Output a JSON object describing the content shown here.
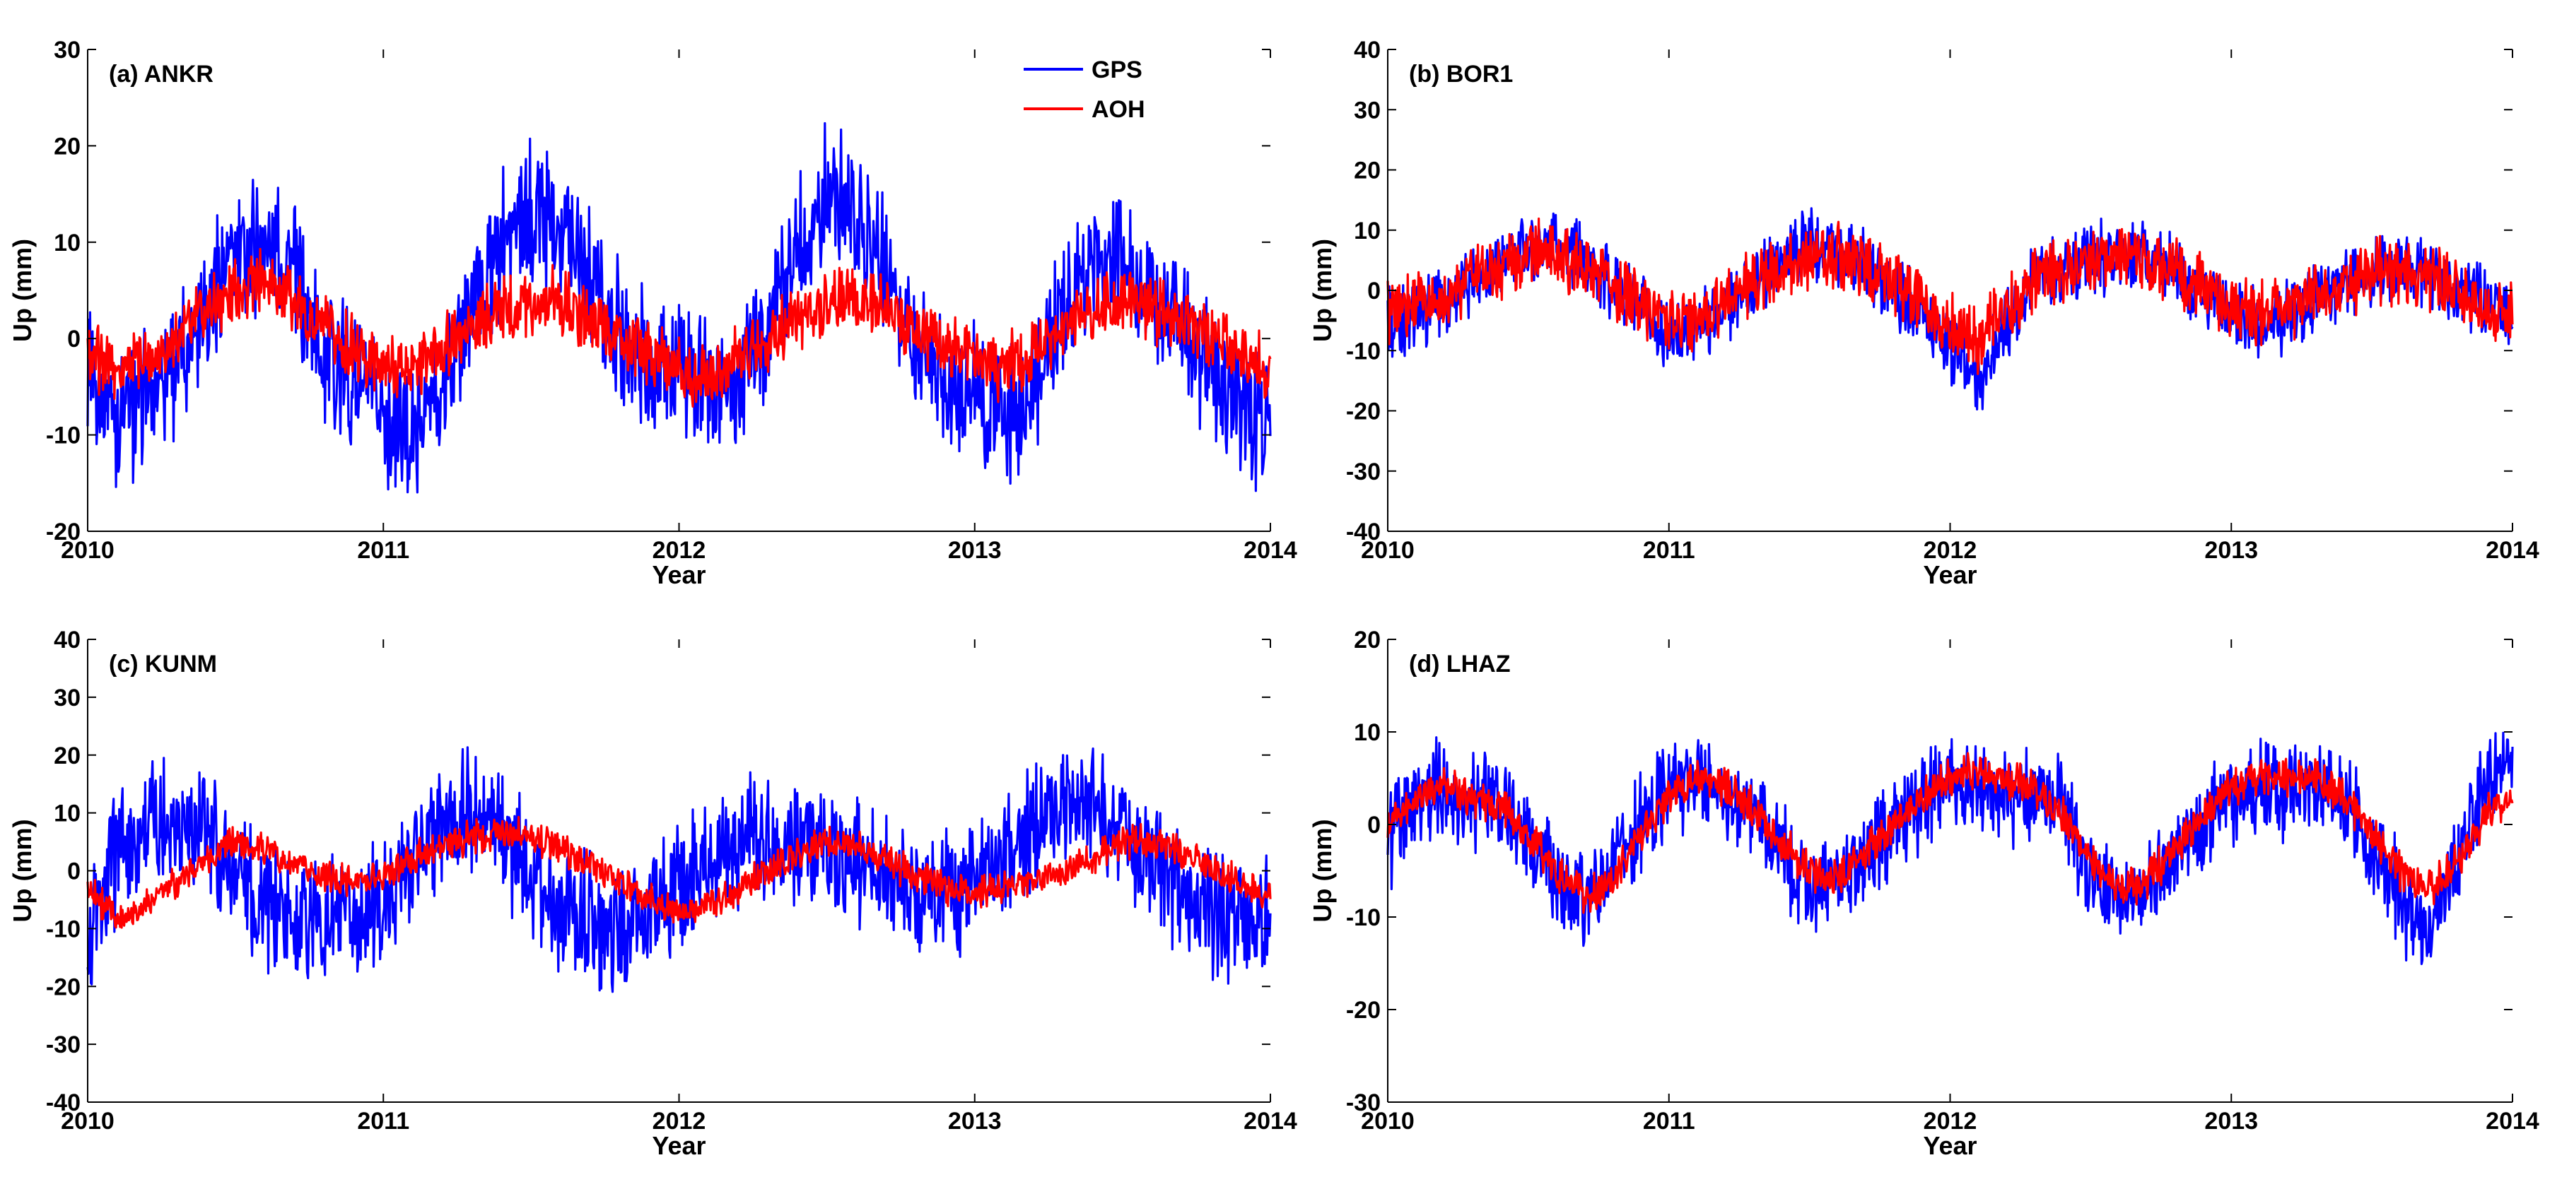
{
  "figure": {
    "legend_series": [
      "GPS",
      "AOH"
    ],
    "colors": {
      "GPS": "#0000ff",
      "AOH": "#ff0000",
      "axes": "#000000",
      "background": "#ffffff"
    }
  },
  "chart_data": [
    {
      "type": "line",
      "title": "(a) ANKR",
      "xlabel": "Year",
      "ylabel": "Up (mm)",
      "xlim": [
        2010,
        2014
      ],
      "ylim": [
        -20,
        30
      ],
      "xticks": [
        2010,
        2011,
        2012,
        2013,
        2014
      ],
      "yticks": [
        -20,
        -10,
        0,
        10,
        20,
        30
      ],
      "legend": {
        "entries": [
          "GPS",
          "AOH"
        ],
        "location": "top-right"
      },
      "series": [
        {
          "name": "GPS",
          "color": "#0000ff",
          "x": [
            2010.0,
            2010.1,
            2010.2,
            2010.3,
            2010.4,
            2010.5,
            2010.6,
            2010.7,
            2010.8,
            2010.9,
            2011.0,
            2011.1,
            2011.2,
            2011.3,
            2011.4,
            2011.5,
            2011.6,
            2011.7,
            2011.8,
            2011.9,
            2012.0,
            2012.1,
            2012.2,
            2012.3,
            2012.4,
            2012.5,
            2012.6,
            2012.7,
            2012.8,
            2012.9,
            2013.0,
            2013.1,
            2013.2,
            2013.3,
            2013.4,
            2013.5,
            2013.6,
            2013.7,
            2013.8,
            2013.9,
            2014.0
          ],
          "values": [
            -2,
            -8,
            -6,
            -3,
            4,
            9,
            10,
            7,
            -2,
            -4,
            -8,
            -10,
            -5,
            3,
            10,
            13,
            12,
            7,
            0,
            -3,
            -3,
            -6,
            -4,
            2,
            9,
            15,
            13,
            7,
            -1,
            -4,
            -6,
            -9,
            -5,
            3,
            7,
            8,
            5,
            1,
            -3,
            -7,
            -10
          ]
        },
        {
          "name": "AOH",
          "color": "#ff0000",
          "x": [
            2010.0,
            2010.1,
            2010.2,
            2010.3,
            2010.4,
            2010.5,
            2010.6,
            2010.7,
            2010.8,
            2010.9,
            2011.0,
            2011.1,
            2011.2,
            2011.3,
            2011.4,
            2011.5,
            2011.6,
            2011.7,
            2011.8,
            2011.9,
            2012.0,
            2012.1,
            2012.2,
            2012.3,
            2012.4,
            2012.5,
            2012.6,
            2012.7,
            2012.8,
            2012.9,
            2013.0,
            2013.1,
            2013.2,
            2013.3,
            2013.4,
            2013.5,
            2013.6,
            2013.7,
            2013.8,
            2013.9,
            2014.0
          ],
          "values": [
            -2,
            -3,
            -2,
            0,
            3,
            5,
            6,
            4,
            1,
            -1,
            -3,
            -3,
            -1,
            1,
            3,
            4,
            4,
            2,
            0,
            -2,
            -3,
            -4,
            -2,
            0,
            2,
            4,
            4,
            3,
            1,
            -1,
            -2,
            -3,
            -2,
            1,
            3,
            4,
            3,
            2,
            0,
            -1,
            -3
          ]
        }
      ]
    },
    {
      "type": "line",
      "title": "(b) BOR1",
      "xlabel": "Year",
      "ylabel": "Up (mm)",
      "xlim": [
        2010,
        2014
      ],
      "ylim": [
        -40,
        40
      ],
      "xticks": [
        2010,
        2011,
        2012,
        2013,
        2014
      ],
      "yticks": [
        -40,
        -30,
        -20,
        -10,
        0,
        10,
        20,
        30,
        40
      ],
      "series": [
        {
          "name": "GPS",
          "color": "#0000ff",
          "x": [
            2010.0,
            2010.1,
            2010.2,
            2010.3,
            2010.4,
            2010.5,
            2010.6,
            2010.7,
            2010.8,
            2010.9,
            2011.0,
            2011.1,
            2011.2,
            2011.3,
            2011.4,
            2011.5,
            2011.6,
            2011.7,
            2011.8,
            2011.9,
            2012.0,
            2012.1,
            2012.2,
            2012.3,
            2012.4,
            2012.5,
            2012.6,
            2012.7,
            2012.8,
            2012.9,
            2013.0,
            2013.1,
            2013.2,
            2013.3,
            2013.4,
            2013.5,
            2013.6,
            2013.7,
            2013.8,
            2013.9,
            2014.0
          ],
          "values": [
            -6,
            -4,
            -2,
            2,
            5,
            7,
            8,
            5,
            1,
            -3,
            -8,
            -6,
            -3,
            1,
            5,
            8,
            7,
            4,
            0,
            -4,
            -10,
            -15,
            -6,
            2,
            4,
            5,
            6,
            6,
            3,
            0,
            -4,
            -6,
            -4,
            -2,
            1,
            3,
            4,
            3,
            0,
            -2,
            -5
          ]
        },
        {
          "name": "AOH",
          "color": "#ff0000",
          "x": [
            2010.0,
            2010.1,
            2010.2,
            2010.3,
            2010.4,
            2010.5,
            2010.6,
            2010.7,
            2010.8,
            2010.9,
            2011.0,
            2011.1,
            2011.2,
            2011.3,
            2011.4,
            2011.5,
            2011.6,
            2011.7,
            2011.8,
            2011.9,
            2012.0,
            2012.1,
            2012.2,
            2012.3,
            2012.4,
            2012.5,
            2012.6,
            2012.7,
            2012.8,
            2012.9,
            2013.0,
            2013.1,
            2013.2,
            2013.3,
            2013.4,
            2013.5,
            2013.6,
            2013.7,
            2013.8,
            2013.9,
            2014.0
          ],
          "values": [
            -3,
            -2,
            -1,
            2,
            4,
            6,
            6,
            4,
            1,
            -2,
            -5,
            -5,
            -2,
            1,
            4,
            6,
            6,
            4,
            1,
            -2,
            -6,
            -8,
            -3,
            2,
            4,
            5,
            6,
            5,
            3,
            0,
            -3,
            -4,
            -3,
            -1,
            1,
            3,
            3,
            2,
            0,
            -2,
            -4
          ]
        }
      ]
    },
    {
      "type": "line",
      "title": "(c) KUNM",
      "xlabel": "Year",
      "ylabel": "Up (mm)",
      "xlim": [
        2010,
        2014
      ],
      "ylim": [
        -40,
        40
      ],
      "xticks": [
        2010,
        2011,
        2012,
        2013,
        2014
      ],
      "yticks": [
        -40,
        -30,
        -20,
        -10,
        0,
        10,
        20,
        30,
        40
      ],
      "series": [
        {
          "name": "GPS",
          "color": "#0000ff",
          "x": [
            2010.0,
            2010.1,
            2010.2,
            2010.3,
            2010.4,
            2010.5,
            2010.6,
            2010.7,
            2010.8,
            2010.9,
            2011.0,
            2011.1,
            2011.2,
            2011.3,
            2011.4,
            2011.5,
            2011.6,
            2011.7,
            2011.8,
            2011.9,
            2012.0,
            2012.1,
            2012.2,
            2012.3,
            2012.4,
            2012.5,
            2012.6,
            2012.7,
            2012.8,
            2012.9,
            2013.0,
            2013.1,
            2013.2,
            2013.3,
            2013.4,
            2013.5,
            2013.6,
            2013.7,
            2013.8,
            2013.9,
            2014.0
          ],
          "values": [
            -12,
            2,
            8,
            10,
            6,
            0,
            -6,
            -8,
            -9,
            -8,
            -6,
            2,
            8,
            10,
            6,
            0,
            -6,
            -9,
            -10,
            -8,
            -4,
            2,
            5,
            6,
            5,
            4,
            2,
            -1,
            -3,
            -4,
            -2,
            3,
            7,
            10,
            12,
            8,
            2,
            -3,
            -8,
            -9,
            -6
          ]
        },
        {
          "name": "AOH",
          "color": "#ff0000",
          "x": [
            2010.0,
            2010.1,
            2010.2,
            2010.3,
            2010.4,
            2010.5,
            2010.6,
            2010.7,
            2010.8,
            2010.9,
            2011.0,
            2011.1,
            2011.2,
            2011.3,
            2011.4,
            2011.5,
            2011.6,
            2011.7,
            2011.8,
            2011.9,
            2012.0,
            2012.1,
            2012.2,
            2012.3,
            2012.4,
            2012.5,
            2012.6,
            2012.7,
            2012.8,
            2012.9,
            2013.0,
            2013.1,
            2013.2,
            2013.3,
            2013.4,
            2013.5,
            2013.6,
            2013.7,
            2013.8,
            2013.9,
            2014.0
          ],
          "values": [
            -3,
            -8,
            -6,
            -2,
            2,
            5,
            4,
            1,
            -1,
            -2,
            -1,
            2,
            4,
            6,
            7,
            6,
            4,
            1,
            -2,
            -5,
            -7,
            -6,
            -3,
            0,
            3,
            5,
            4,
            2,
            -1,
            -3,
            -4,
            -3,
            -2,
            0,
            2,
            5,
            5,
            3,
            1,
            -2,
            -5
          ]
        }
      ]
    },
    {
      "type": "line",
      "title": "(d) LHAZ",
      "xlabel": "Year",
      "ylabel": "Up (mm)",
      "xlim": [
        2010,
        2014
      ],
      "ylim": [
        -30,
        20
      ],
      "xticks": [
        2010,
        2011,
        2012,
        2013,
        2014
      ],
      "yticks": [
        -30,
        -20,
        -10,
        0,
        10,
        20
      ],
      "series": [
        {
          "name": "GPS",
          "color": "#0000ff",
          "x": [
            2010.0,
            2010.1,
            2010.2,
            2010.3,
            2010.4,
            2010.5,
            2010.6,
            2010.7,
            2010.8,
            2010.9,
            2011.0,
            2011.1,
            2011.2,
            2011.3,
            2011.4,
            2011.5,
            2011.6,
            2011.7,
            2011.8,
            2011.9,
            2012.0,
            2012.1,
            2012.2,
            2012.3,
            2012.4,
            2012.5,
            2012.6,
            2012.7,
            2012.8,
            2012.9,
            2013.0,
            2013.1,
            2013.2,
            2013.3,
            2013.4,
            2013.5,
            2013.6,
            2013.7,
            2013.8,
            2013.9,
            2014.0
          ],
          "values": [
            -2,
            3,
            4,
            3,
            2,
            -1,
            -6,
            -8,
            -5,
            0,
            4,
            5,
            3,
            1,
            -3,
            -6,
            -6,
            -3,
            0,
            2,
            5,
            4,
            3,
            4,
            2,
            -5,
            -8,
            -7,
            -3,
            0,
            3,
            4,
            3,
            4,
            3,
            -2,
            -8,
            -12,
            -5,
            5,
            8
          ]
        },
        {
          "name": "AOH",
          "color": "#ff0000",
          "x": [
            2010.0,
            2010.1,
            2010.2,
            2010.3,
            2010.4,
            2010.5,
            2010.6,
            2010.7,
            2010.8,
            2010.9,
            2011.0,
            2011.1,
            2011.2,
            2011.3,
            2011.4,
            2011.5,
            2011.6,
            2011.7,
            2011.8,
            2011.9,
            2012.0,
            2012.1,
            2012.2,
            2012.3,
            2012.4,
            2012.5,
            2012.6,
            2012.7,
            2012.8,
            2012.9,
            2013.0,
            2013.1,
            2013.2,
            2013.3,
            2013.4,
            2013.5,
            2013.6,
            2013.7,
            2013.8,
            2013.9,
            2014.0
          ],
          "values": [
            0,
            3,
            4,
            3,
            2,
            -1,
            -5,
            -8,
            -6,
            -1,
            3,
            5,
            4,
            2,
            -2,
            -5,
            -6,
            -3,
            0,
            3,
            5,
            6,
            5,
            4,
            1,
            -4,
            -7,
            -6,
            -3,
            1,
            4,
            5,
            5,
            5,
            3,
            -1,
            -5,
            -7,
            -4,
            1,
            3
          ]
        }
      ]
    }
  ]
}
